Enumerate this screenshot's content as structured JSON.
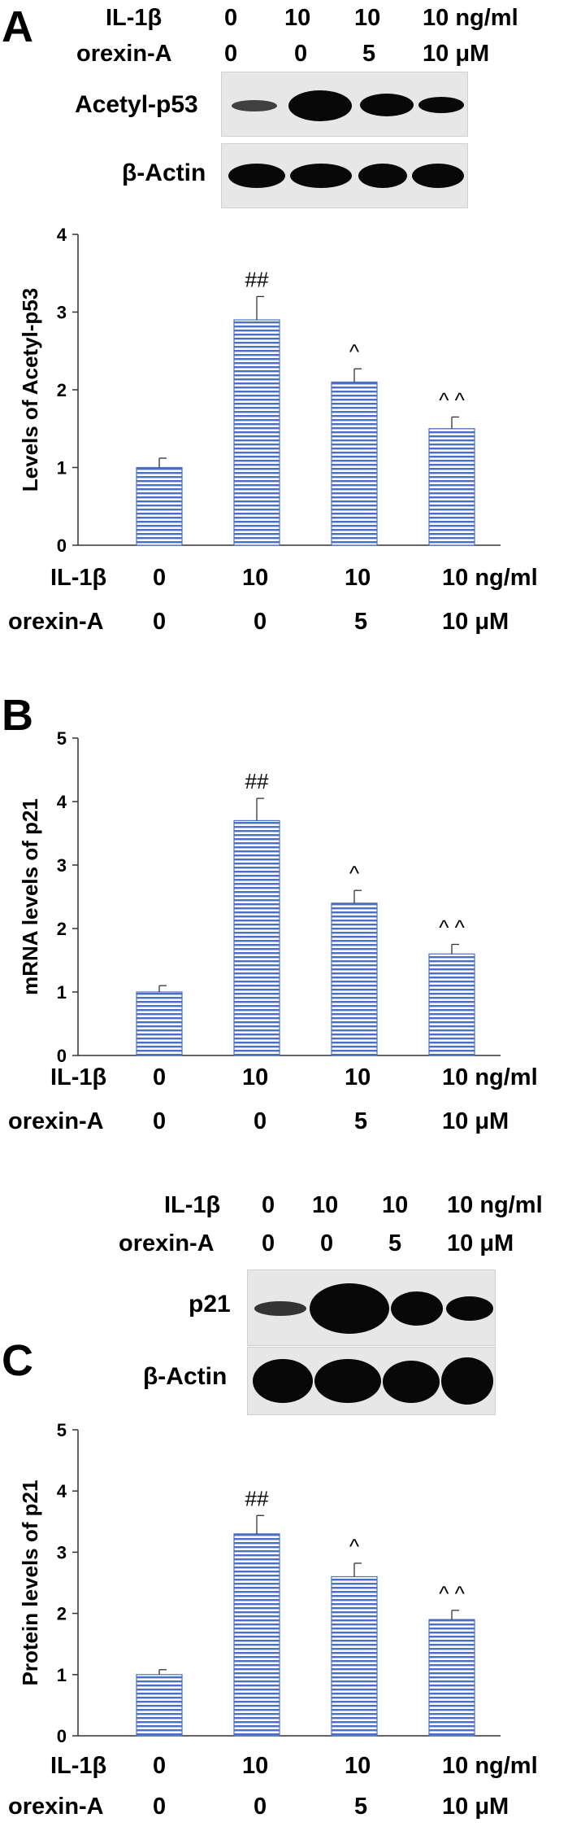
{
  "panels": [
    {
      "letter": "A",
      "blot_conditions": {
        "il1b": {
          "label": "IL-1β",
          "values": [
            "0",
            "10",
            "10",
            "10 ng/ml"
          ]
        },
        "orexin": {
          "label": "orexin-A",
          "values": [
            "0",
            "0",
            "5",
            "10 μM"
          ]
        }
      },
      "blots": [
        {
          "label": "Acetyl-p53",
          "band_intensity": [
            0.35,
            1.0,
            0.7,
            0.5
          ]
        },
        {
          "label": "β-Actin",
          "band_intensity": [
            0.8,
            0.8,
            0.8,
            0.8
          ]
        }
      ],
      "bottom_conditions": {
        "il1b": {
          "label": "IL-1β",
          "values": [
            "0",
            "10",
            "10",
            "10 ng/ml"
          ]
        },
        "orexin": {
          "label": "orexin-A",
          "values": [
            "0",
            "0",
            "5",
            "10 μM"
          ]
        }
      }
    },
    {
      "letter": "B",
      "bottom_conditions": {
        "il1b": {
          "label": "IL-1β",
          "values": [
            "0",
            "10",
            "10",
            "10 ng/ml"
          ]
        },
        "orexin": {
          "label": "orexin-A",
          "values": [
            "0",
            "0",
            "5",
            "10 μM"
          ]
        }
      }
    },
    {
      "letter": "C",
      "blot_conditions": {
        "il1b": {
          "label": "IL-1β",
          "values": [
            "0",
            "10",
            "10",
            "10 ng/ml"
          ]
        },
        "orexin": {
          "label": "orexin-A",
          "values": [
            "0",
            "0",
            "5",
            "10 μM"
          ]
        }
      },
      "blots": [
        {
          "label": "p21",
          "band_intensity": [
            0.35,
            1.0,
            0.75,
            0.55
          ]
        },
        {
          "label": "β-Actin",
          "band_intensity": [
            0.95,
            0.95,
            0.95,
            0.95
          ]
        }
      ],
      "bottom_conditions": {
        "il1b": {
          "label": "IL-1β",
          "values": [
            "0",
            "10",
            "10",
            "10 ng/ml"
          ]
        },
        "orexin": {
          "label": "orexin-A",
          "values": [
            "0",
            "0",
            "5",
            "10 μM"
          ]
        }
      }
    }
  ],
  "chart_data": [
    {
      "type": "bar",
      "panel": "A",
      "title": "",
      "xlabel": "",
      "ylabel": "Levels of Acetyl-p53",
      "categories": [
        "IL-1β 0 / orexin-A 0",
        "IL-1β 10 / orexin-A 0",
        "IL-1β 10 / orexin-A 5",
        "IL-1β 10 / orexin-A 10"
      ],
      "values": [
        1.0,
        2.9,
        2.1,
        1.5
      ],
      "errors": [
        0.12,
        0.3,
        0.17,
        0.15
      ],
      "annotations": [
        "",
        "##",
        "^",
        "^ ^"
      ],
      "ylim": [
        0,
        4
      ],
      "yticks": [
        "0",
        "1",
        "2",
        "3",
        "4"
      ],
      "bar_color": "#4a6fc4",
      "grid": false
    },
    {
      "type": "bar",
      "panel": "B",
      "title": "",
      "xlabel": "",
      "ylabel": "mRNA levels of p21",
      "categories": [
        "IL-1β 0 / orexin-A 0",
        "IL-1β 10 / orexin-A 0",
        "IL-1β 10 / orexin-A 5",
        "IL-1β 10 / orexin-A 10"
      ],
      "values": [
        1.0,
        3.7,
        2.4,
        1.6
      ],
      "errors": [
        0.1,
        0.35,
        0.2,
        0.15
      ],
      "annotations": [
        "",
        "##",
        "^",
        "^ ^"
      ],
      "ylim": [
        0,
        5
      ],
      "yticks": [
        "0",
        "1",
        "2",
        "3",
        "4",
        "5"
      ],
      "bar_color": "#4a6fc4",
      "grid": false
    },
    {
      "type": "bar",
      "panel": "C",
      "title": "",
      "xlabel": "",
      "ylabel": "Protein levels of p21",
      "categories": [
        "IL-1β 0 / orexin-A 0",
        "IL-1β 10 / orexin-A 0",
        "IL-1β 10 / orexin-A 5",
        "IL-1β 10 / orexin-A 10"
      ],
      "values": [
        1.0,
        3.3,
        2.6,
        1.9
      ],
      "errors": [
        0.08,
        0.3,
        0.22,
        0.15
      ],
      "annotations": [
        "",
        "##",
        "^",
        "^ ^"
      ],
      "ylim": [
        0,
        5
      ],
      "yticks": [
        "0",
        "1",
        "2",
        "3",
        "4",
        "5"
      ],
      "bar_color": "#4a6fc4",
      "grid": false
    }
  ]
}
